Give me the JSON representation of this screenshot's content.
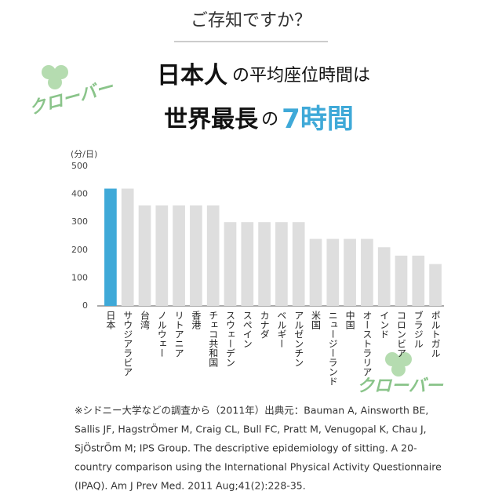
{
  "header": {
    "question": "ご存知ですか？",
    "line1": [
      "日本人",
      "の平均座位時間は"
    ],
    "line2": [
      "世界最長",
      "の",
      "7時間"
    ]
  },
  "watermarks": [
    "クローバー",
    "クローバー"
  ],
  "chart_data": {
    "type": "bar",
    "y_unit": "(分/日)",
    "categories": [
      "日本",
      "サウジアラビア",
      "台湾",
      "ノルウェー",
      "リトアニア",
      "香港",
      "チェコ共和国",
      "スウェーデン",
      "スペイン",
      "カナダ",
      "ベルギー",
      "アルゼンチン",
      "米国",
      "ニュージーランド",
      "中国",
      "オーストラリア",
      "インド",
      "コロンビア",
      "ブラジル",
      "ポルトガル"
    ],
    "values": [
      420,
      420,
      360,
      360,
      360,
      360,
      360,
      300,
      300,
      300,
      300,
      300,
      240,
      240,
      240,
      240,
      210,
      180,
      180,
      150
    ],
    "colors": [
      "#3fa9d8",
      "#dedede",
      "#dedede",
      "#dedede",
      "#dedede",
      "#dedede",
      "#dedede",
      "#dedede",
      "#dedede",
      "#dedede",
      "#dedede",
      "#dedede",
      "#dedede",
      "#dedede",
      "#dedede",
      "#dedede",
      "#dedede",
      "#dedede",
      "#dedede",
      "#dedede"
    ],
    "ylim": [
      0,
      500
    ],
    "yticks": [
      0,
      100,
      200,
      300,
      400,
      500
    ],
    "grid": false
  },
  "footnote": [
    "※シドニー大学などの調査から（2011年）出典元：Bauman A, Ainsworth BE,",
    "Sallis JF, HagstrÖmer M, Craig CL, Bull FC, Pratt M, Venugopal K, Chau J,",
    "SjÖstrÖm M; IPS Group. The descriptive epidemiology of sitting. A 20-",
    "country comparison using the International Physical Activity Questionnaire",
    "(IPAQ). Am J Prev Med. 2011 Aug;41(2):228-35."
  ]
}
